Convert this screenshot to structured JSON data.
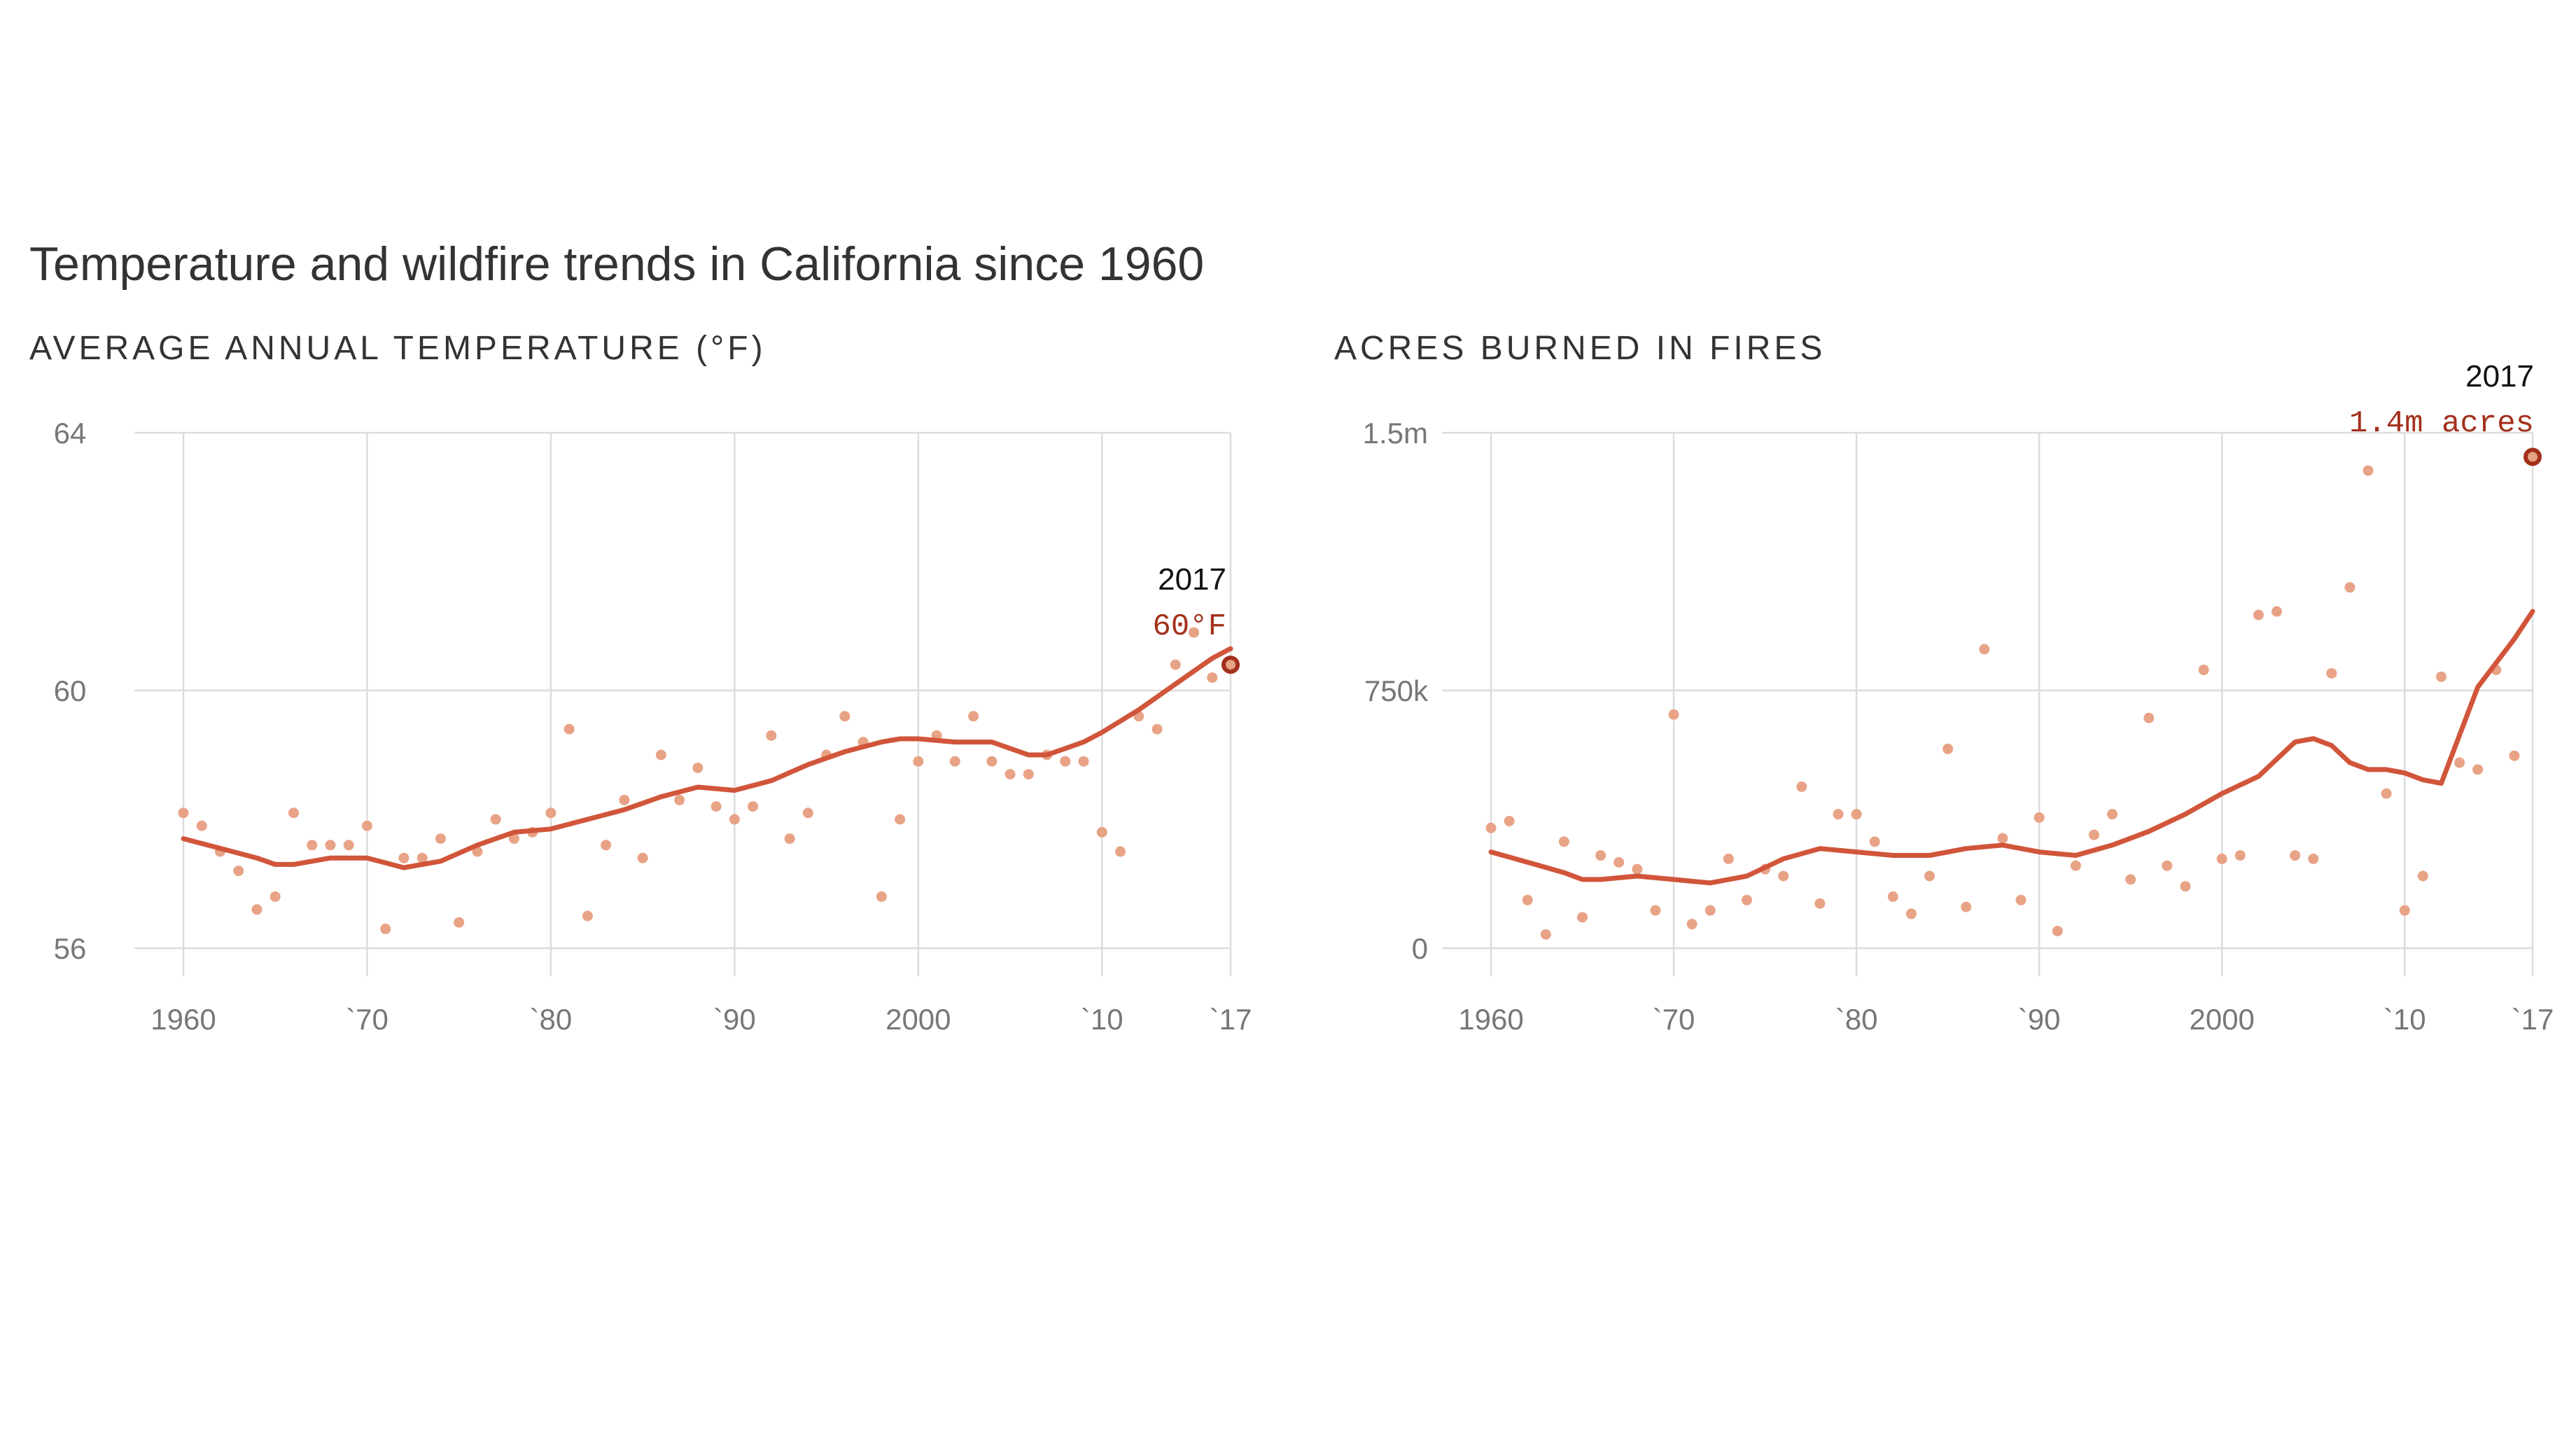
{
  "title": "Temperature and wildfire trends in California since 1960",
  "colors": {
    "dot": "#e8a386",
    "trend": "#d1553a",
    "highlight_stroke": "#a3301b",
    "annotation_value": "#a3301b",
    "grid": "#dcdcdc",
    "tick": "#777777",
    "title": "#333333"
  },
  "chart_data": [
    {
      "type": "scatter",
      "title": "AVERAGE ANNUAL TEMPERATURE (°F)",
      "x_ticks": [
        {
          "value": 1960,
          "label": "1960"
        },
        {
          "value": 1970,
          "label": "`70"
        },
        {
          "value": 1980,
          "label": "`80"
        },
        {
          "value": 1990,
          "label": "`90"
        },
        {
          "value": 2000,
          "label": "2000"
        },
        {
          "value": 2010,
          "label": "`10"
        },
        {
          "value": 2017,
          "label": "`17"
        }
      ],
      "y_ticks": [
        {
          "value": 56,
          "label": "56"
        },
        {
          "value": 60,
          "label": "60"
        },
        {
          "value": 64,
          "label": "64"
        }
      ],
      "xlim": [
        1960,
        2017
      ],
      "ylim": [
        56,
        64
      ],
      "grid": true,
      "points": {
        "x": [
          1960,
          1961,
          1962,
          1963,
          1964,
          1965,
          1966,
          1967,
          1968,
          1969,
          1970,
          1971,
          1972,
          1973,
          1974,
          1975,
          1976,
          1977,
          1978,
          1979,
          1980,
          1981,
          1982,
          1983,
          1984,
          1985,
          1986,
          1987,
          1988,
          1989,
          1990,
          1991,
          1992,
          1993,
          1994,
          1995,
          1996,
          1997,
          1998,
          1999,
          2000,
          2001,
          2002,
          2003,
          2004,
          2005,
          2006,
          2007,
          2008,
          2009,
          2010,
          2011,
          2012,
          2013,
          2014,
          2015,
          2016,
          2017
        ],
        "y": [
          58.1,
          57.9,
          57.5,
          57.2,
          56.6,
          56.8,
          58.1,
          57.6,
          57.6,
          57.6,
          57.9,
          56.3,
          57.4,
          57.4,
          57.7,
          56.4,
          57.5,
          58.0,
          57.7,
          57.8,
          58.1,
          59.4,
          56.5,
          57.6,
          58.3,
          57.4,
          59.0,
          58.3,
          58.8,
          58.2,
          58.0,
          58.2,
          59.3,
          57.7,
          58.1,
          59.0,
          59.6,
          59.2,
          56.8,
          58.0,
          58.9,
          59.3,
          58.9,
          59.6,
          58.9,
          58.7,
          58.7,
          59.0,
          58.9,
          58.9,
          57.8,
          57.5,
          59.6,
          59.4,
          60.4,
          60.9,
          60.2,
          60.4
        ]
      },
      "trend": {
        "x": [
          1960,
          1962,
          1964,
          1965,
          1966,
          1968,
          1970,
          1972,
          1974,
          1976,
          1978,
          1980,
          1982,
          1984,
          1986,
          1988,
          1990,
          1992,
          1994,
          1996,
          1998,
          1999,
          2000,
          2002,
          2004,
          2006,
          2007,
          2008,
          2009,
          2010,
          2012,
          2014,
          2016,
          2017
        ],
        "y": [
          57.7,
          57.55,
          57.4,
          57.3,
          57.3,
          57.4,
          57.4,
          57.25,
          57.35,
          57.6,
          57.8,
          57.85,
          58.0,
          58.15,
          58.35,
          58.5,
          58.45,
          58.6,
          58.85,
          59.05,
          59.2,
          59.25,
          59.25,
          59.2,
          59.2,
          59.0,
          59.0,
          59.1,
          59.2,
          59.35,
          59.7,
          60.1,
          60.5,
          60.65
        ]
      },
      "highlight": {
        "x": 2017,
        "y": 60.4
      },
      "annotation": {
        "year": "2017",
        "value": "60°F"
      }
    },
    {
      "type": "scatter",
      "title": "ACRES BURNED IN FIRES",
      "x_ticks": [
        {
          "value": 1960,
          "label": "1960"
        },
        {
          "value": 1970,
          "label": "`70"
        },
        {
          "value": 1980,
          "label": "`80"
        },
        {
          "value": 1990,
          "label": "`90"
        },
        {
          "value": 2000,
          "label": "2000"
        },
        {
          "value": 2010,
          "label": "`10"
        },
        {
          "value": 2017,
          "label": "`17"
        }
      ],
      "y_ticks": [
        {
          "value": 0,
          "label": "0"
        },
        {
          "value": 750000,
          "label": "750k"
        },
        {
          "value": 1500000,
          "label": "1.5m"
        }
      ],
      "xlim": [
        1960,
        2017
      ],
      "ylim": [
        0,
        1500000
      ],
      "grid": true,
      "points": {
        "x": [
          1960,
          1961,
          1962,
          1963,
          1964,
          1965,
          1966,
          1967,
          1968,
          1969,
          1970,
          1971,
          1972,
          1973,
          1974,
          1975,
          1976,
          1977,
          1978,
          1979,
          1980,
          1981,
          1982,
          1983,
          1984,
          1985,
          1986,
          1987,
          1988,
          1989,
          1990,
          1991,
          1992,
          1993,
          1994,
          1995,
          1996,
          1997,
          1998,
          1999,
          2000,
          2001,
          2002,
          2003,
          2004,
          2005,
          2006,
          2007,
          2008,
          2009,
          2010,
          2011,
          2012,
          2013,
          2014,
          2015,
          2016,
          2017
        ],
        "y": [
          350000,
          370000,
          140000,
          40000,
          310000,
          90000,
          270000,
          250000,
          230000,
          110000,
          680000,
          70000,
          110000,
          260000,
          140000,
          230000,
          210000,
          470000,
          130000,
          390000,
          390000,
          310000,
          150000,
          100000,
          210000,
          580000,
          120000,
          870000,
          320000,
          140000,
          380000,
          50000,
          240000,
          330000,
          390000,
          200000,
          670000,
          240000,
          180000,
          810000,
          260000,
          270000,
          970000,
          980000,
          270000,
          260000,
          800000,
          1050000,
          1390000,
          450000,
          110000,
          210000,
          790000,
          540000,
          520000,
          810000,
          560000,
          1430000
        ]
      },
      "trend": {
        "x": [
          1960,
          1962,
          1964,
          1965,
          1966,
          1968,
          1970,
          1972,
          1974,
          1976,
          1978,
          1980,
          1982,
          1984,
          1986,
          1988,
          1990,
          1992,
          1994,
          1996,
          1998,
          2000,
          2002,
          2003,
          2004,
          2005,
          2006,
          2007,
          2008,
          2009,
          2010,
          2011,
          2012,
          2014,
          2016,
          2017
        ],
        "y": [
          280000,
          250000,
          220000,
          200000,
          200000,
          210000,
          200000,
          190000,
          210000,
          260000,
          290000,
          280000,
          270000,
          270000,
          290000,
          300000,
          280000,
          270000,
          300000,
          340000,
          390000,
          450000,
          500000,
          550000,
          600000,
          610000,
          590000,
          540000,
          520000,
          520000,
          510000,
          490000,
          480000,
          760000,
          900000,
          980000
        ]
      },
      "highlight": {
        "x": 2017,
        "y": 1430000
      },
      "annotation": {
        "year": "2017",
        "value": "1.4m acres"
      }
    }
  ]
}
